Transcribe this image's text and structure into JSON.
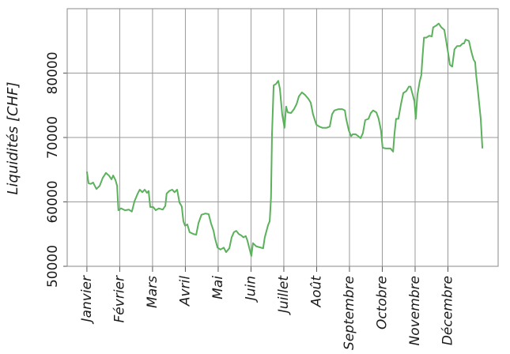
{
  "chart_data": {
    "type": "line",
    "ylabel": "Liquidités [CHF]",
    "color": "#5cb15c",
    "grid": true,
    "xlim": [
      -0.6,
      12.53
    ],
    "ylim": [
      50000,
      90000
    ],
    "yticks": [
      50000,
      60000,
      70000,
      80000
    ],
    "xticks": [
      {
        "value": 0,
        "label": "Janvier"
      },
      {
        "value": 1,
        "label": "Février"
      },
      {
        "value": 2,
        "label": "Mars"
      },
      {
        "value": 3,
        "label": "Avril"
      },
      {
        "value": 4,
        "label": "Mai"
      },
      {
        "value": 5,
        "label": "Juin"
      },
      {
        "value": 6,
        "label": "Juillet"
      },
      {
        "value": 7,
        "label": "Août"
      },
      {
        "value": 8,
        "label": "Septembre"
      },
      {
        "value": 9,
        "label": "Octobre"
      },
      {
        "value": 10,
        "label": "Novembre"
      },
      {
        "value": 11,
        "label": "Décembre"
      }
    ],
    "x": [
      0.0,
      0.05,
      0.12,
      0.19,
      0.29,
      0.39,
      0.48,
      0.58,
      0.67,
      0.75,
      0.8,
      0.87,
      0.92,
      0.96,
      1.04,
      1.16,
      1.28,
      1.37,
      1.45,
      1.54,
      1.61,
      1.69,
      1.76,
      1.83,
      1.88,
      1.93,
      2.02,
      2.1,
      2.19,
      2.31,
      2.39,
      2.43,
      2.51,
      2.6,
      2.67,
      2.75,
      2.82,
      2.89,
      2.94,
      2.99,
      3.06,
      3.13,
      3.25,
      3.33,
      3.4,
      3.49,
      3.61,
      3.71,
      3.78,
      3.86,
      3.9,
      3.98,
      4.07,
      4.17,
      4.24,
      4.34,
      4.41,
      4.48,
      4.55,
      4.63,
      4.7,
      4.77,
      4.84,
      4.89,
      4.96,
      5.01,
      5.06,
      5.16,
      5.3,
      5.37,
      5.42,
      5.52,
      5.57,
      5.61,
      5.64,
      5.69,
      5.76,
      5.83,
      5.88,
      5.95,
      6.02,
      6.07,
      6.12,
      6.22,
      6.31,
      6.39,
      6.46,
      6.55,
      6.65,
      6.75,
      6.82,
      6.89,
      6.99,
      7.08,
      7.18,
      7.3,
      7.4,
      7.47,
      7.54,
      7.66,
      7.78,
      7.86,
      7.9,
      7.98,
      8.05,
      8.1,
      8.19,
      8.27,
      8.34,
      8.41,
      8.48,
      8.58,
      8.65,
      8.72,
      8.82,
      8.89,
      8.96,
      9.01,
      9.11,
      9.25,
      9.33,
      9.37,
      9.42,
      9.49,
      9.57,
      9.64,
      9.73,
      9.81,
      9.86,
      9.93,
      9.98,
      10.02,
      10.07,
      10.14,
      10.19,
      10.22,
      10.27,
      10.34,
      10.43,
      10.51,
      10.55,
      10.65,
      10.72,
      10.8,
      10.89,
      10.94,
      11.01,
      11.06,
      11.13,
      11.2,
      11.28,
      11.37,
      11.45,
      11.49,
      11.54,
      11.64,
      11.71,
      11.78,
      11.83,
      11.86,
      11.9,
      11.95,
      12.0,
      12.05
    ],
    "values": [
      64700,
      62900,
      62800,
      63000,
      62000,
      62500,
      63700,
      64500,
      64100,
      63500,
      64100,
      63400,
      62500,
      58700,
      59000,
      58700,
      58800,
      58500,
      60100,
      61200,
      61900,
      61500,
      61900,
      61400,
      61700,
      59200,
      59200,
      58700,
      59000,
      58800,
      59400,
      61300,
      61700,
      61900,
      61500,
      61900,
      59900,
      59300,
      57000,
      56300,
      56500,
      55300,
      55000,
      54900,
      56700,
      58000,
      58200,
      58100,
      56700,
      55500,
      54400,
      52900,
      52600,
      52900,
      52200,
      52800,
      54500,
      55300,
      55500,
      55000,
      54800,
      54500,
      54700,
      54000,
      52600,
      51600,
      53600,
      53100,
      52900,
      52800,
      54500,
      56400,
      57000,
      60700,
      70500,
      78100,
      78300,
      78800,
      77600,
      73600,
      71500,
      74800,
      73900,
      73800,
      74400,
      75200,
      76400,
      77000,
      76600,
      76000,
      75400,
      73600,
      72000,
      71700,
      71500,
      71500,
      71700,
      73600,
      74200,
      74400,
      74400,
      74200,
      72900,
      71100,
      70200,
      70500,
      70500,
      70200,
      69900,
      70700,
      72700,
      72900,
      73800,
      74200,
      73900,
      72900,
      71100,
      68400,
      68300,
      68300,
      67800,
      70500,
      72900,
      72900,
      75200,
      76900,
      77200,
      77900,
      77900,
      76600,
      75600,
      72900,
      76600,
      78700,
      79700,
      82100,
      85500,
      85500,
      85800,
      85700,
      87100,
      87400,
      87700,
      87100,
      86700,
      85200,
      83000,
      81300,
      81000,
      83700,
      84200,
      84200,
      84600,
      84600,
      85200,
      85000,
      83400,
      82100,
      81700,
      79700,
      77900,
      75400,
      72900,
      68300
    ]
  }
}
